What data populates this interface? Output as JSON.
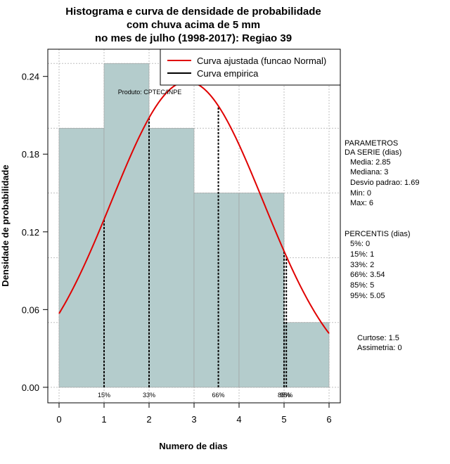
{
  "chart_data": {
    "type": "bar",
    "title_lines": [
      "Histograma e curva de densidade de probabilidade",
      "com chuva acima de 5 mm",
      "no mes de julho (1998-2017): Regiao 39"
    ],
    "xlabel": "Numero de dias",
    "ylabel": "Densidade de probabilidade",
    "xlim": [
      -0.25,
      6.25
    ],
    "ylim": [
      -0.012,
      0.261
    ],
    "x_ticks": [
      "0",
      "1",
      "2",
      "3",
      "4",
      "5",
      "6"
    ],
    "y_ticks": [
      "0.00",
      "0.06",
      "0.12",
      "0.18",
      "0.24"
    ],
    "bins": [
      {
        "from": 0,
        "to": 1,
        "density": 0.2
      },
      {
        "from": 1,
        "to": 2,
        "density": 0.25
      },
      {
        "from": 2,
        "to": 3,
        "density": 0.2
      },
      {
        "from": 3,
        "to": 4,
        "density": 0.15
      },
      {
        "from": 4,
        "to": 5,
        "density": 0.15
      },
      {
        "from": 5,
        "to": 6,
        "density": 0.05
      }
    ],
    "normal_fit": {
      "mean": 2.85,
      "sd": 1.69
    },
    "percentile_lines": [
      {
        "x": 1,
        "label": "15%"
      },
      {
        "x": 2,
        "label": "33%"
      },
      {
        "x": 3.54,
        "label": "66%"
      },
      {
        "x": 5,
        "label": "85%"
      },
      {
        "x": 5.05,
        "label": "95%"
      }
    ],
    "legend": {
      "fit_label": "Curva ajustada (funcao Normal)",
      "empirical_label": "Curva empirica"
    },
    "credit": "Produto: CPTEC/INPE",
    "colors": {
      "bar_fill": "#b4cccc",
      "fit_line": "#e00000",
      "grid": "#bfbfbf"
    }
  },
  "side_panel": {
    "params_title_1": "PARAMETROS",
    "params_title_2": "DA SERIE (dias)",
    "params": [
      "Media: 2.85",
      "Mediana: 3",
      "Desvio padrao: 1.69",
      "Min: 0",
      "Max: 6"
    ],
    "percentis_title": "PERCENTIS (dias)",
    "percentis": [
      "5%: 0",
      "15%: 1",
      "33%: 2",
      "66%: 3.54",
      "85%: 5",
      "95%: 5.05"
    ],
    "curtose": "Curtose: 1.5",
    "assimetria": "Assimetria: 0"
  }
}
